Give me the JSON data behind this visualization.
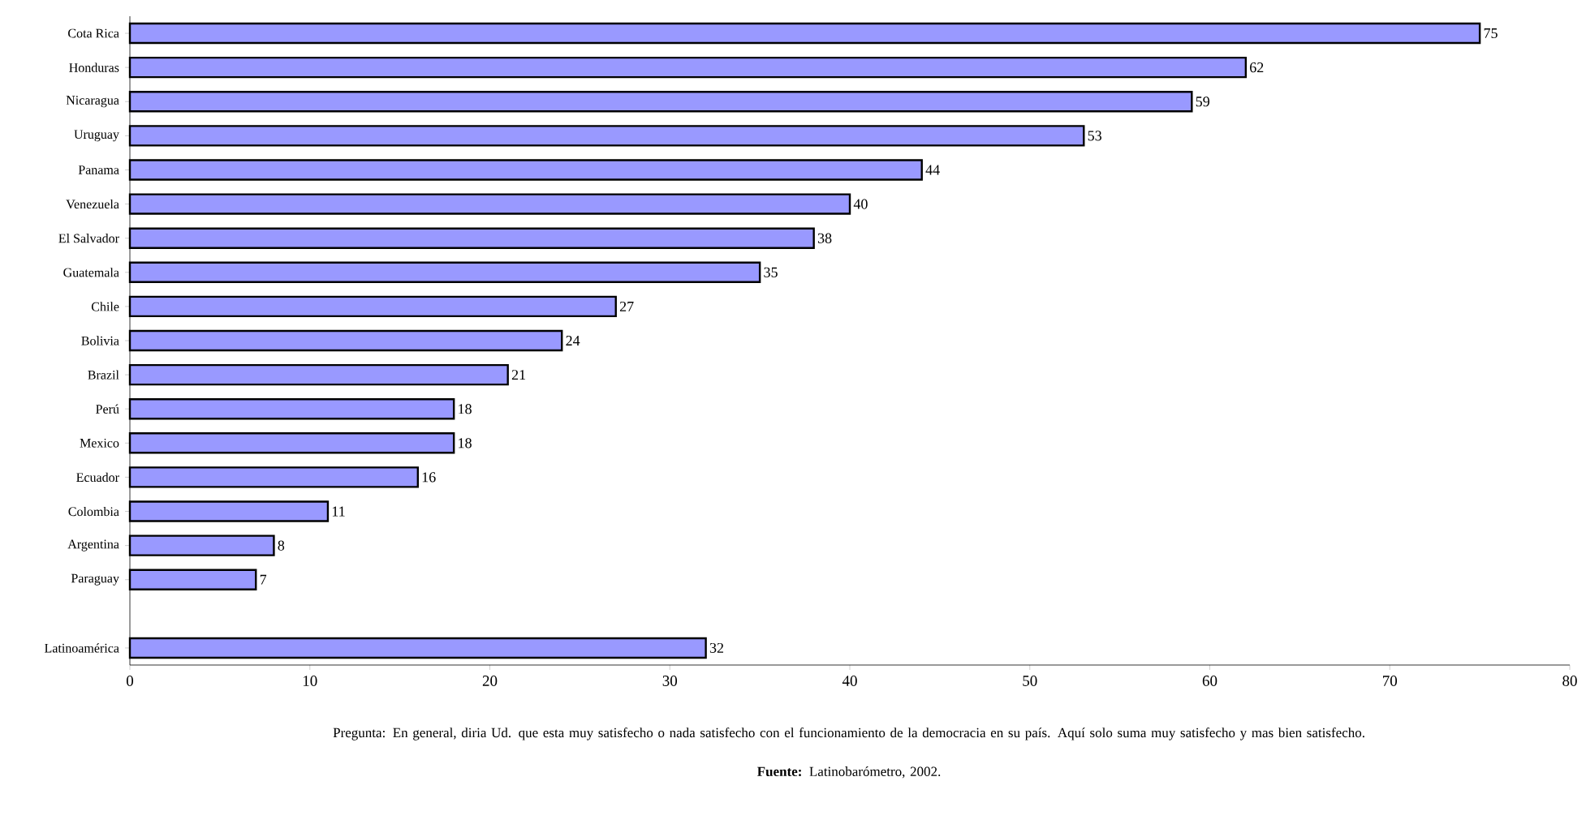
{
  "chart_data": {
    "type": "bar",
    "orientation": "horizontal",
    "data_labels": true,
    "categories": [
      "Cota Rica",
      "Honduras",
      "Nicaragua",
      "Uruguay",
      "Panama",
      "Venezuela",
      "El Salvador",
      "Guatemala",
      "Chile",
      "Bolivia",
      "Brazil",
      "Perú",
      "Mexico",
      "Ecuador",
      "Colombia",
      "Argentina",
      "Paraguay",
      null,
      "Latinoamérica"
    ],
    "values": [
      75,
      62,
      59,
      53,
      44,
      40,
      38,
      35,
      27,
      24,
      21,
      18,
      18,
      16,
      11,
      8,
      7,
      null,
      32
    ],
    "color": "#9999ff",
    "xlim": [
      0,
      80
    ],
    "xticks": [
      0,
      10,
      20,
      30,
      40,
      50,
      60,
      70,
      80
    ],
    "annotations": [
      "Pregunta: En general, diria Ud. que esta muy satisfecho o nada satisfecho con el funcionamiento de la democracia en su país. Aquí solo suma muy satisfecho y mas bien satisfecho.",
      "**Fuente:** Latinobarómetro, 2002."
    ]
  }
}
